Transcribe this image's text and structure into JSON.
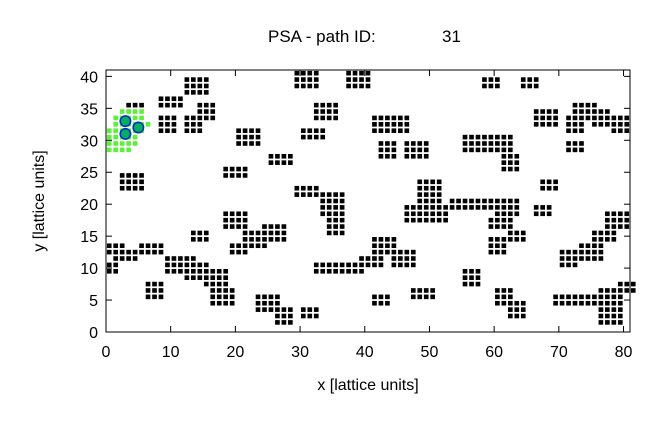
{
  "chart_data": {
    "type": "scatter",
    "title": "PSA - path ID:",
    "path_id": "31",
    "xlabel": "x [lattice units]",
    "ylabel": "y [lattice units]",
    "xlim": [
      0,
      81
    ],
    "ylim": [
      0,
      41
    ],
    "xticks": [
      0,
      10,
      20,
      30,
      40,
      50,
      60,
      70,
      80
    ],
    "yticks": [
      0,
      5,
      10,
      15,
      20,
      25,
      30,
      35,
      40
    ],
    "grid": false,
    "legend": "none",
    "colors": {
      "occupied": "#000000",
      "path": "#5cf03a",
      "path_marker": "#00b060",
      "marker_outline": "#0030c0"
    },
    "occupied_blocks": [
      [
        12,
        37,
        4,
        3
      ],
      [
        14,
        33,
        3,
        3
      ],
      [
        8,
        35,
        4,
        2
      ],
      [
        3,
        33,
        3,
        3
      ],
      [
        8,
        31,
        3,
        3
      ],
      [
        12,
        31,
        3,
        3
      ],
      [
        20,
        29,
        4,
        3
      ],
      [
        25,
        26,
        4,
        2
      ],
      [
        18,
        24,
        4,
        2
      ],
      [
        29,
        38,
        4,
        3
      ],
      [
        32,
        33,
        4,
        3
      ],
      [
        30,
        30,
        4,
        2
      ],
      [
        37,
        38,
        4,
        3
      ],
      [
        41,
        31,
        4,
        3
      ],
      [
        44,
        31,
        3,
        3
      ],
      [
        42,
        27,
        3,
        3
      ],
      [
        46,
        27,
        4,
        3
      ],
      [
        55,
        28,
        4,
        3
      ],
      [
        59,
        28,
        4,
        3
      ],
      [
        61,
        25,
        3,
        3
      ],
      [
        58,
        38,
        3,
        2
      ],
      [
        64,
        38,
        3,
        2
      ],
      [
        66,
        32,
        4,
        3
      ],
      [
        71,
        31,
        3,
        3
      ],
      [
        72,
        33,
        4,
        3
      ],
      [
        78,
        31,
        3,
        3
      ],
      [
        75,
        32,
        3,
        3
      ],
      [
        71,
        28,
        3,
        2
      ],
      [
        67,
        22,
        3,
        2
      ],
      [
        2,
        22,
        4,
        3
      ],
      [
        29,
        21,
        4,
        2
      ],
      [
        33,
        18,
        4,
        4
      ],
      [
        34,
        15,
        3,
        3
      ],
      [
        18,
        16,
        4,
        3
      ],
      [
        21,
        13,
        4,
        3
      ],
      [
        24,
        14,
        4,
        3
      ],
      [
        1,
        11,
        4,
        2
      ],
      [
        5,
        12,
        4,
        2
      ],
      [
        12,
        8,
        4,
        3
      ],
      [
        15,
        7,
        4,
        3
      ],
      [
        9,
        9,
        4,
        3
      ],
      [
        6,
        5,
        3,
        3
      ],
      [
        16,
        4,
        4,
        3
      ],
      [
        23,
        3,
        4,
        3
      ],
      [
        26,
        1,
        3,
        3
      ],
      [
        30,
        2,
        3,
        2
      ],
      [
        32,
        9,
        4,
        2
      ],
      [
        36,
        9,
        4,
        2
      ],
      [
        39,
        10,
        4,
        2
      ],
      [
        41,
        12,
        4,
        3
      ],
      [
        44,
        10,
        4,
        3
      ],
      [
        46,
        17,
        4,
        3
      ],
      [
        49,
        17,
        4,
        3
      ],
      [
        48,
        20,
        4,
        4
      ],
      [
        53,
        19,
        4,
        2
      ],
      [
        57,
        19,
        4,
        2
      ],
      [
        59,
        16,
        4,
        2
      ],
      [
        59,
        12,
        3,
        3
      ],
      [
        60,
        18,
        4,
        3
      ],
      [
        62,
        14,
        3,
        2
      ],
      [
        55,
        7,
        3,
        3
      ],
      [
        60,
        4,
        3,
        3
      ],
      [
        62,
        2,
        3,
        3
      ],
      [
        66,
        18,
        3,
        2
      ],
      [
        70,
        10,
        3,
        3
      ],
      [
        73,
        11,
        4,
        3
      ],
      [
        75,
        14,
        4,
        2
      ],
      [
        77,
        16,
        4,
        3
      ],
      [
        76,
        4,
        4,
        3
      ],
      [
        79,
        6,
        3,
        2
      ],
      [
        73,
        4,
        3,
        2
      ],
      [
        76,
        1,
        4,
        3
      ],
      [
        69,
        4,
        4,
        2
      ],
      [
        41,
        4,
        3,
        2
      ],
      [
        47,
        5,
        4,
        2
      ],
      [
        19,
        12,
        3,
        2
      ],
      [
        13,
        14,
        3,
        2
      ],
      [
        0,
        12,
        3,
        2
      ],
      [
        0,
        9,
        2,
        2
      ],
      [
        11,
        10,
        3,
        2
      ]
    ],
    "path_cells": [
      [
        0,
        28
      ],
      [
        1,
        28
      ],
      [
        2,
        28
      ],
      [
        3,
        28
      ],
      [
        0,
        29
      ],
      [
        1,
        29
      ],
      [
        2,
        29
      ],
      [
        3,
        29
      ],
      [
        4,
        29
      ],
      [
        0,
        30
      ],
      [
        1,
        30
      ],
      [
        2,
        30
      ],
      [
        3,
        30
      ],
      [
        4,
        30
      ],
      [
        0,
        31
      ],
      [
        1,
        31
      ],
      [
        2,
        31
      ],
      [
        3,
        31
      ],
      [
        4,
        31
      ],
      [
        5,
        31
      ],
      [
        1,
        32
      ],
      [
        2,
        32
      ],
      [
        3,
        32
      ],
      [
        4,
        32
      ],
      [
        5,
        32
      ],
      [
        6,
        32
      ],
      [
        1,
        33
      ],
      [
        2,
        33
      ],
      [
        3,
        33
      ],
      [
        4,
        33
      ],
      [
        5,
        33
      ],
      [
        2,
        34
      ],
      [
        3,
        34
      ],
      [
        4,
        34
      ],
      [
        5,
        34
      ]
    ],
    "path_markers": [
      [
        3,
        33
      ],
      [
        5,
        32
      ],
      [
        3,
        31
      ]
    ]
  }
}
